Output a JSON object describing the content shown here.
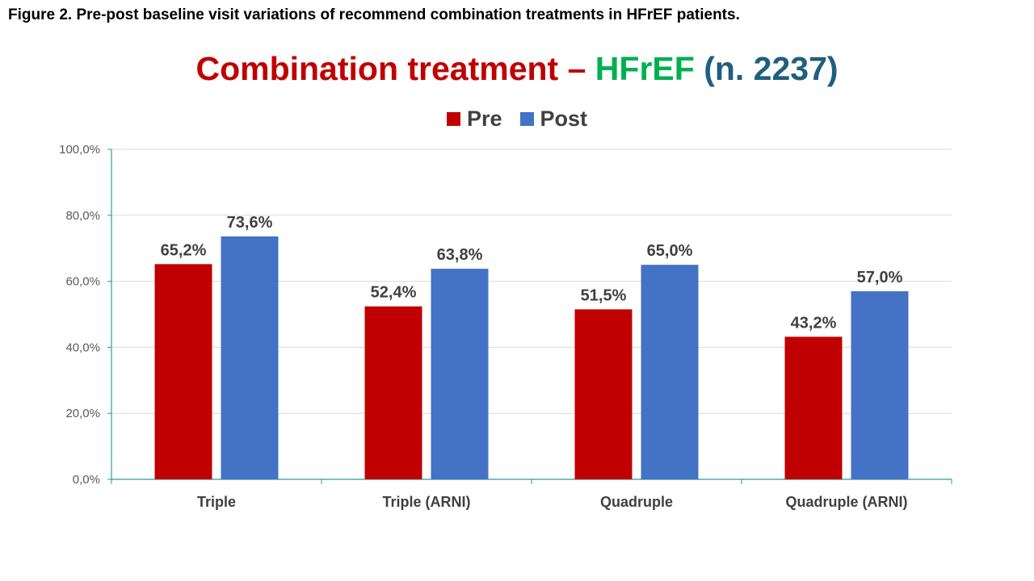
{
  "caption": "Figure 2. Pre-post baseline visit variations of recommend combination treatments in HFrEF patients.",
  "title": {
    "part1": "Combination treatment – ",
    "part2": "HFrEF",
    "part3": " (n. 2237)",
    "colors": {
      "part1": "#c00000",
      "part2": "#00b050",
      "part3": "#1f5f7f"
    }
  },
  "chart_data": {
    "type": "bar",
    "categories": [
      "Triple",
      "Triple (ARNI)",
      "Quadruple",
      "Quadruple (ARNI)"
    ],
    "series": [
      {
        "name": "Pre",
        "color": "#c00000",
        "values": [
          65.2,
          52.4,
          51.5,
          43.2
        ],
        "labels": [
          "65,2%",
          "52,4%",
          "51,5%",
          "43,2%"
        ]
      },
      {
        "name": "Post",
        "color": "#4472c4",
        "values": [
          73.6,
          63.8,
          65.0,
          57.0
        ],
        "labels": [
          "73,6%",
          "63,8%",
          "65,0%",
          "57,0%"
        ]
      }
    ],
    "ylim": [
      0,
      100
    ],
    "yticks": [
      0,
      20,
      40,
      60,
      80,
      100
    ],
    "ytick_labels": [
      "0,0%",
      "20,0%",
      "40,0%",
      "60,0%",
      "80,0%",
      "100,0%"
    ],
    "grid": true,
    "legend_position": "top-center",
    "axis_color": "#2e9c9c",
    "grid_color": "#d9d9d9"
  }
}
